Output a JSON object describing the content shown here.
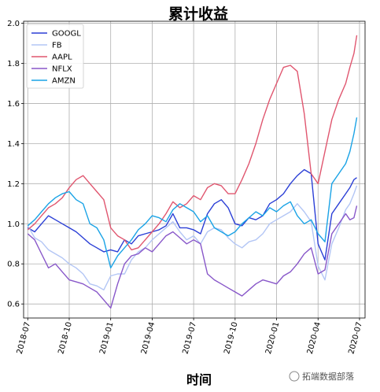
{
  "chart_data": {
    "type": "line",
    "title": "累计收益",
    "xlabel": "时间",
    "ylabel": "",
    "x_ticks": [
      "2018-07",
      "2018-10",
      "2019-01",
      "2019-04",
      "2019-07",
      "2019-10",
      "2020-01",
      "2020-04",
      "2020-07"
    ],
    "y_ticks": [
      "0.6",
      "0.8",
      "1.0",
      "1.2",
      "1.4",
      "1.6",
      "1.8",
      "2.0"
    ],
    "xlim": [
      -0.3,
      24.4
    ],
    "ylim": [
      0.53,
      2.01
    ],
    "grid": true,
    "legend_position": "top-left",
    "x": [
      0,
      0.5,
      1,
      1.5,
      2,
      2.5,
      3,
      3.5,
      4,
      4.5,
      5,
      5.5,
      6,
      6.5,
      7,
      7.5,
      8,
      8.5,
      9,
      9.5,
      10,
      10.5,
      11,
      11.5,
      12,
      12.5,
      13,
      13.5,
      14,
      14.5,
      15,
      15.5,
      16,
      16.5,
      17,
      17.5,
      18,
      18.5,
      19,
      19.5,
      20,
      20.5,
      21,
      21.5,
      22,
      22.5,
      23,
      23.3,
      23.6,
      23.8
    ],
    "series": [
      {
        "name": "GOOGL",
        "color": "#2b3fd6",
        "values": [
          0.98,
          0.96,
          1.0,
          1.04,
          1.02,
          1.0,
          0.98,
          0.96,
          0.93,
          0.9,
          0.88,
          0.86,
          0.87,
          0.86,
          0.92,
          0.9,
          0.94,
          0.95,
          0.96,
          0.97,
          0.99,
          1.05,
          0.98,
          0.98,
          0.97,
          0.95,
          1.05,
          1.1,
          1.12,
          1.08,
          1.0,
          0.99,
          1.03,
          1.02,
          1.04,
          1.1,
          1.12,
          1.15,
          1.2,
          1.24,
          1.27,
          1.25,
          0.9,
          0.82,
          1.05,
          1.1,
          1.15,
          1.18,
          1.22,
          1.23
        ]
      },
      {
        "name": "FB",
        "color": "#b3c6f5",
        "values": [
          0.99,
          0.93,
          0.91,
          0.87,
          0.85,
          0.83,
          0.8,
          0.78,
          0.75,
          0.7,
          0.69,
          0.67,
          0.74,
          0.75,
          0.75,
          0.82,
          0.86,
          0.88,
          0.92,
          0.95,
          0.98,
          1.01,
          0.96,
          0.92,
          0.94,
          0.9,
          0.96,
          0.98,
          0.97,
          0.93,
          0.9,
          0.88,
          0.91,
          0.92,
          0.95,
          1.0,
          1.02,
          1.04,
          1.06,
          1.1,
          1.06,
          1.01,
          0.79,
          0.72,
          0.9,
          0.98,
          1.07,
          1.1,
          1.15,
          1.19
        ]
      },
      {
        "name": "AAPL",
        "color": "#e0566f",
        "values": [
          0.97,
          1.0,
          1.04,
          1.08,
          1.1,
          1.13,
          1.18,
          1.22,
          1.24,
          1.2,
          1.16,
          1.12,
          0.98,
          0.94,
          0.92,
          0.87,
          0.88,
          0.92,
          0.96,
          1.0,
          1.05,
          1.11,
          1.08,
          1.1,
          1.14,
          1.12,
          1.18,
          1.2,
          1.19,
          1.15,
          1.15,
          1.22,
          1.3,
          1.4,
          1.52,
          1.62,
          1.7,
          1.78,
          1.79,
          1.76,
          1.55,
          1.25,
          1.2,
          1.36,
          1.52,
          1.62,
          1.7,
          1.78,
          1.85,
          1.94
        ]
      },
      {
        "name": "NFLX",
        "color": "#8857c9",
        "values": [
          0.95,
          0.92,
          0.85,
          0.78,
          0.8,
          0.76,
          0.72,
          0.71,
          0.7,
          0.68,
          0.66,
          0.62,
          0.58,
          0.7,
          0.8,
          0.84,
          0.85,
          0.88,
          0.86,
          0.9,
          0.94,
          0.96,
          0.93,
          0.9,
          0.92,
          0.9,
          0.75,
          0.72,
          0.7,
          0.68,
          0.66,
          0.64,
          0.67,
          0.7,
          0.72,
          0.71,
          0.7,
          0.74,
          0.76,
          0.8,
          0.85,
          0.88,
          0.75,
          0.77,
          0.95,
          1.0,
          1.05,
          1.02,
          1.03,
          1.09
        ]
      },
      {
        "name": "AMZN",
        "color": "#1aa3e6",
        "values": [
          0.99,
          1.02,
          1.06,
          1.1,
          1.13,
          1.15,
          1.16,
          1.12,
          1.1,
          1.0,
          0.98,
          0.92,
          0.78,
          0.84,
          0.88,
          0.92,
          0.97,
          1.0,
          1.04,
          1.03,
          1.01,
          1.07,
          1.1,
          1.08,
          1.06,
          1.01,
          1.04,
          0.98,
          0.96,
          0.94,
          0.96,
          1.0,
          1.03,
          1.06,
          1.04,
          1.08,
          1.06,
          1.09,
          1.11,
          1.04,
          1.0,
          1.02,
          0.95,
          0.91,
          1.2,
          1.25,
          1.3,
          1.36,
          1.45,
          1.53
        ]
      }
    ]
  },
  "watermark": {
    "text": "拓端数据部落"
  }
}
